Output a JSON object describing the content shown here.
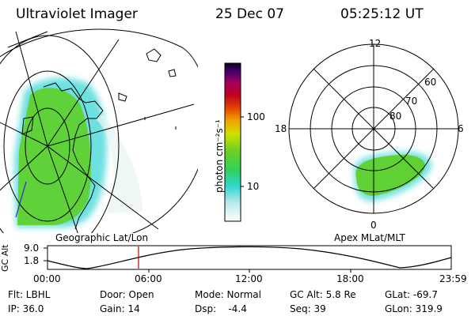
{
  "header": {
    "title": "Ultraviolet Imager",
    "date": "25 Dec 07",
    "time": "05:25:12 UT"
  },
  "colorbar": {
    "label": "photon cm⁻²s⁻¹",
    "ticks": [
      "100",
      "10"
    ]
  },
  "left_panel": {
    "caption": "Geographic Lat/Lon"
  },
  "right_panel": {
    "caption": "Apex MLat/MLT",
    "lat_labels": [
      "60",
      "70",
      "80"
    ],
    "mlt_labels": {
      "top": "12",
      "left": "18",
      "right": "6",
      "bottom": "0"
    }
  },
  "altitude_plot": {
    "ylabel": "GC Alt",
    "yticks": [
      "9.0",
      "1.8"
    ],
    "xticks": [
      "00:00",
      "06:00",
      "12:00",
      "18:00",
      "23:59"
    ],
    "marker_time": "05:25:12"
  },
  "info": {
    "flt": "Flt: LBHL",
    "ip": "IP: 36.0",
    "door": "Door: Open",
    "gain": "Gain: 14",
    "mode": "Mode: Normal",
    "dsp": "Dsp:    -4.4",
    "gc_alt": "GC Alt: 5.8 Re",
    "seq": "Seq: 39",
    "glat": "GLat: -69.7",
    "glon": "GLon: 319.9"
  },
  "colors": {
    "aurora_green": "#5fd02a",
    "aurora_cyan": "#3ed6d6",
    "marker_red": "#cc0000"
  }
}
